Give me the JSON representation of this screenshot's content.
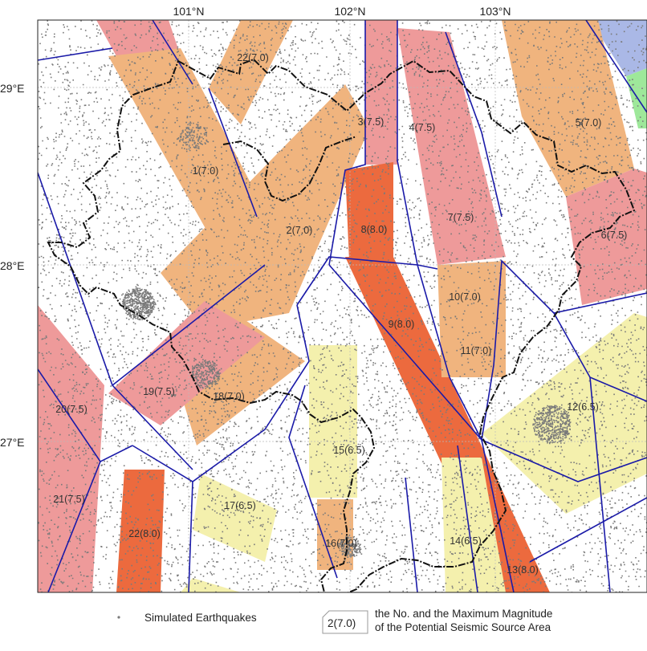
{
  "axes": {
    "top_ticks": [
      "101°N",
      "102°N",
      "103°N"
    ],
    "left_ticks": [
      "29°E",
      "28°E",
      "27°E"
    ]
  },
  "colors": {
    "mag_6_5": "#f4f0ad",
    "mag_7_0": "#f0b47e",
    "mag_7_5": "#ee9a9a",
    "mag_8_0": "#ec6a3e",
    "extra_blue": "#aab8e6",
    "extra_green": "#9ee89a",
    "fault_line": "#1a1aa8",
    "boundary": "#111111",
    "dots": "#7a7a7a"
  },
  "zones": [
    {
      "id": "zone-1",
      "label": "1(7.0)"
    },
    {
      "id": "zone-2",
      "label": "2(7.0)"
    },
    {
      "id": "zone-3",
      "label": "3(7.5)"
    },
    {
      "id": "zone-4",
      "label": "4(7.5)"
    },
    {
      "id": "zone-5",
      "label": "5(7.0)"
    },
    {
      "id": "zone-6",
      "label": "6(7.5)"
    },
    {
      "id": "zone-7",
      "label": "7(7.5)"
    },
    {
      "id": "zone-8",
      "label": "8(8.0)"
    },
    {
      "id": "zone-9",
      "label": "9(8.0)"
    },
    {
      "id": "zone-10",
      "label": "10(7.0)"
    },
    {
      "id": "zone-11",
      "label": "11(7.0)"
    },
    {
      "id": "zone-12",
      "label": "12(6.5)"
    },
    {
      "id": "zone-13",
      "label": "13(8.0)"
    },
    {
      "id": "zone-14",
      "label": "14(6.5)"
    },
    {
      "id": "zone-15",
      "label": "15(6.5)"
    },
    {
      "id": "zone-16",
      "label": "16(7.0)"
    },
    {
      "id": "zone-17",
      "label": "17(6.5)"
    },
    {
      "id": "zone-18",
      "label": "18(7.0)"
    },
    {
      "id": "zone-19",
      "label": "19(7.5)"
    },
    {
      "id": "zone-20",
      "label": "20(7.5)"
    },
    {
      "id": "zone-21",
      "label": "21(7.5)"
    },
    {
      "id": "zone-22",
      "label": "22(7.0)"
    },
    {
      "id": "zone-22b",
      "label": "22(8.0)"
    }
  ],
  "legend": {
    "dots_label": "Simulated Earthquakes",
    "zone_sample": "2(7.0)",
    "zone_desc_line1": "the No. and the Maximum Magnitude",
    "zone_desc_line2": "of the Potential Seismic Source Area"
  }
}
